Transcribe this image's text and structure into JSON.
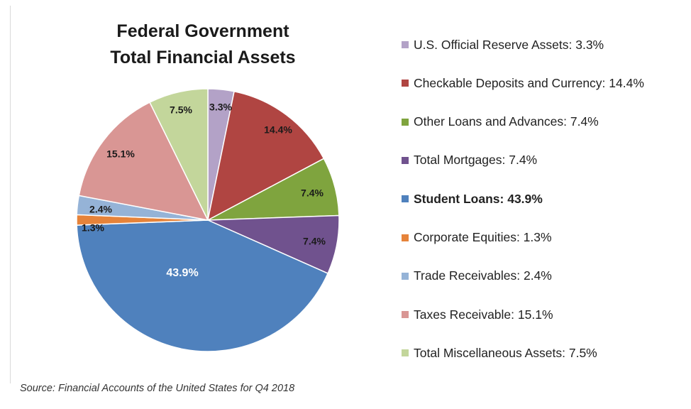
{
  "chart_data": {
    "type": "pie",
    "title": [
      "Federal Government",
      "Total Financial Assets"
    ],
    "source": "Source: Financial Accounts of the United States for Q4 2018",
    "slices": [
      {
        "label": "U.S. Official Reserve Assets: 3.3%",
        "value": 3.3,
        "data_label": "3.3%",
        "color": "#b3a2c7",
        "label_color": "#1a1a1a",
        "bold": false
      },
      {
        "label": "Checkable Deposits and Currency: 14.4%",
        "value": 14.4,
        "data_label": "14.4%",
        "color": "#b04542",
        "label_color": "#1a1a1a",
        "bold": false
      },
      {
        "label": "Other Loans and Advances: 7.4%",
        "value": 7.4,
        "data_label": "7.4%",
        "color": "#7fa43e",
        "label_color": "#1a1a1a",
        "bold": false
      },
      {
        "label": "Total Mortgages: 7.4%",
        "value": 7.4,
        "data_label": "7.4%",
        "color": "#70528e",
        "label_color": "#1a1a1a",
        "bold": false
      },
      {
        "label": "Student Loans: 43.9%",
        "value": 43.9,
        "data_label": "43.9%",
        "color": "#4f81bd",
        "label_color": "#ffffff",
        "bold": true
      },
      {
        "label": "Corporate Equities: 1.3%",
        "value": 1.3,
        "data_label": "1.3%",
        "color": "#e6833a",
        "label_color": "#1a1a1a",
        "bold": false
      },
      {
        "label": "Trade Receivables: 2.4%",
        "value": 2.4,
        "data_label": "2.4%",
        "color": "#95b3d7",
        "label_color": "#1a1a1a",
        "bold": false
      },
      {
        "label": "Taxes Receivable: 15.1%",
        "value": 15.1,
        "data_label": "15.1%",
        "color": "#d99694",
        "label_color": "#1a1a1a",
        "bold": false
      },
      {
        "label": "Total Miscellaneous Assets: 7.5%",
        "value": 7.5,
        "data_label": "7.5%",
        "color": "#c3d69b",
        "label_color": "#1a1a1a",
        "bold": false
      }
    ],
    "start_angle": "12 o'clock",
    "direction": "clockwise",
    "legend_position": "right"
  }
}
